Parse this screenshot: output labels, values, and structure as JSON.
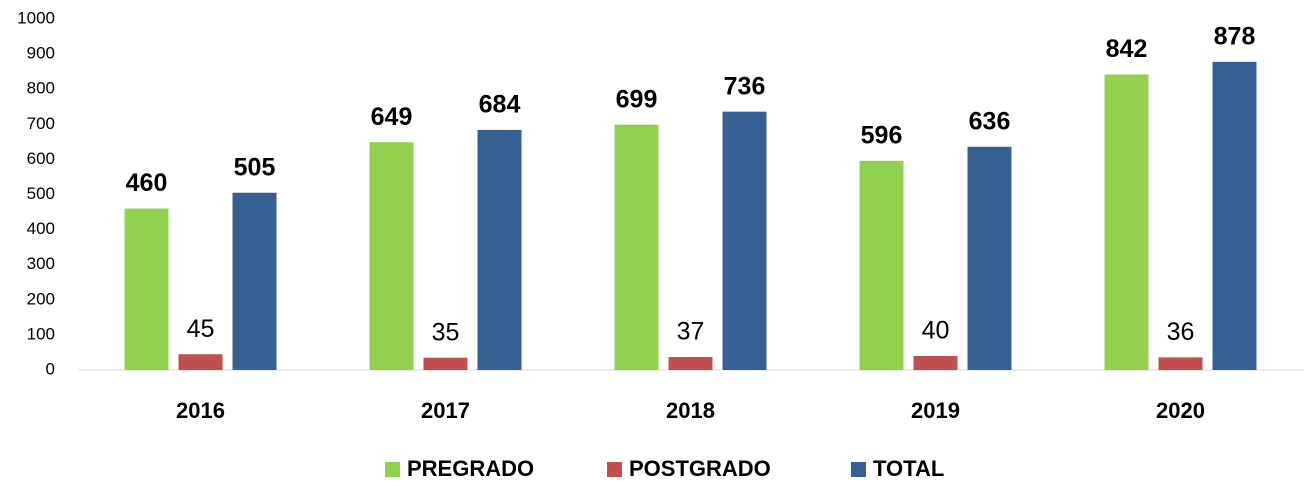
{
  "chart_data": {
    "type": "bar",
    "categories": [
      "2016",
      "2017",
      "2018",
      "2019",
      "2020"
    ],
    "series": [
      {
        "name": "PREGRADO",
        "color": "#92d050",
        "values": [
          460,
          649,
          699,
          596,
          842
        ]
      },
      {
        "name": "POSTGRADO",
        "color": "#c0504d",
        "values": [
          45,
          35,
          37,
          40,
          36
        ]
      },
      {
        "name": "TOTAL",
        "color": "#376092",
        "values": [
          505,
          684,
          736,
          636,
          878
        ]
      }
    ],
    "ylim": [
      0,
      1000
    ],
    "yticks": [
      0,
      100,
      200,
      300,
      400,
      500,
      600,
      700,
      800,
      900,
      1000
    ],
    "grid": false,
    "legend": "bottom"
  }
}
